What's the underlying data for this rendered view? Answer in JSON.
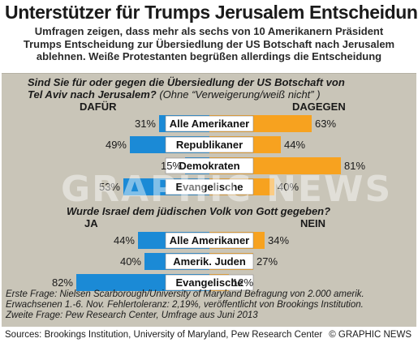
{
  "title": "Unterstützer für Trumps Jerusalem Entscheidung",
  "subtitle_lines": [
    "Umfragen zeigen, dass mehr als sechs von 10 Amerikanern Präsident",
    "Trumps Entscheidung zur Übersiedlung der US Botschaft nach Jerusalem",
    "ablehnen. Weiße Protestanten begrüßen allerdings die Entscheidung"
  ],
  "watermark": "GRAPHIC NEWS",
  "colors": {
    "left": "#1b8ad6",
    "right": "#f7a21f",
    "panel": "#c9c5b8",
    "label_bg": "#ffffff"
  },
  "chart_data": [
    {
      "type": "bar",
      "question": "Sind Sie für oder gegen die Übersiedlung der US Botschaft von Tel Aviv nach Jerusalem?",
      "question_lines": [
        "Sind Sie für oder gegen die Übersiedlung der US Botschaft von",
        "Tel Aviv nach Jerusalem?"
      ],
      "question_note": "(Ohne “Verweigerung/weiß nicht” )",
      "left_header": "DAFÜR",
      "right_header": "DAGEGEN",
      "categories": [
        "Alle Amerikaner",
        "Republikaner",
        "Demokraten",
        "Evangelische"
      ],
      "series": [
        {
          "name": "DAFÜR",
          "values": [
            31,
            49,
            15,
            53
          ]
        },
        {
          "name": "DAGEGEN",
          "values": [
            63,
            44,
            81,
            40
          ]
        }
      ],
      "unit": "%"
    },
    {
      "type": "bar",
      "question": "Wurde Israel dem jüdischen Volk von Gott gegeben?",
      "left_header": "JA",
      "right_header": "NEIN",
      "categories": [
        "Alle Amerikaner",
        "Amerik. Juden",
        "Evangelische"
      ],
      "series": [
        {
          "name": "JA",
          "values": [
            44,
            40,
            82
          ]
        },
        {
          "name": "NEIN",
          "values": [
            34,
            27,
            12
          ]
        }
      ],
      "unit": "%"
    }
  ],
  "notes": [
    "Erste Frage: Nielsen Scarborough/University of Maryland Befragung von 2.000 amerik.",
    "Erwachsenen 1.-6. Nov. Fehlertoleranz: 2,19%, veröffentlicht von Brookings Institution.",
    "Zweite Frage: Pew Research Center, Umfrage aus Juni 2013"
  ],
  "sources": "Sources: Brookings Institution, University of Maryland, Pew Research Center",
  "credit": "© GRAPHIC NEWS"
}
